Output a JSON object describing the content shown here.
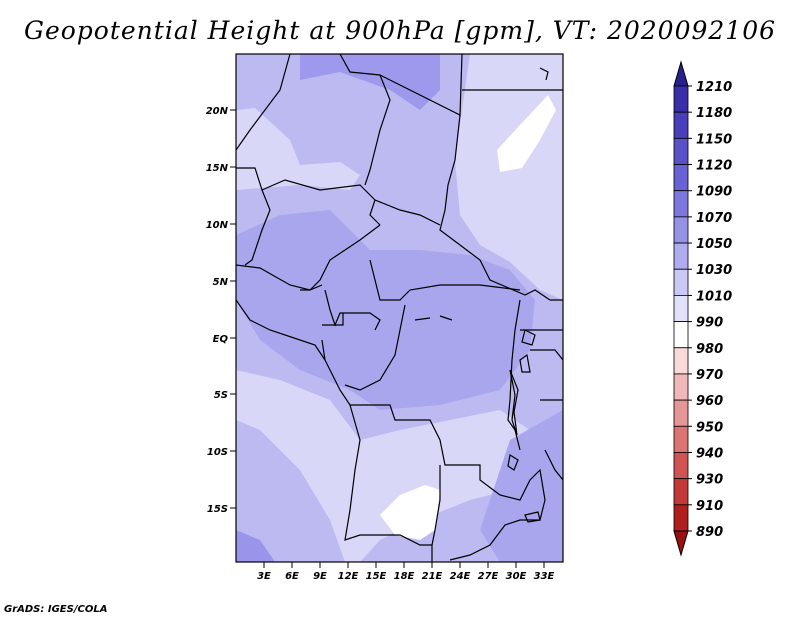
{
  "title": "Geopotential Height at 900hPa [gpm], VT: 2020092106",
  "credit": "GrADS: IGES/COLA",
  "map": {
    "lat_labels": [
      "20N",
      "15N",
      "10N",
      "5N",
      "EQ",
      "5S",
      "10S",
      "15S"
    ],
    "lon_labels": [
      "3E",
      "6E",
      "9E",
      "12E",
      "15E",
      "18E",
      "21E",
      "24E",
      "27E",
      "30E",
      "33E"
    ]
  },
  "colorbar": {
    "levels": [
      "1210",
      "1180",
      "1150",
      "1120",
      "1090",
      "1070",
      "1050",
      "1030",
      "1010",
      "990",
      "980",
      "970",
      "960",
      "950",
      "940",
      "930",
      "910",
      "890"
    ],
    "colors": [
      "#2a1f8f",
      "#3a2fa8",
      "#4a3fba",
      "#5a50c8",
      "#6a62d4",
      "#7e78de",
      "#9692e6",
      "#b0aced",
      "#cac8f4",
      "#e2e1fa",
      "#ffffff",
      "#f8dada",
      "#f0b8b8",
      "#e69696",
      "#dc7474",
      "#d15454",
      "#c43838",
      "#b01e1e",
      "#991010"
    ]
  },
  "shading": {
    "lightest": "#ffffff",
    "light": "#d8d7f8",
    "mid": "#bdbaf2",
    "dark": "#a9a5ee",
    "darkest": "#8f8ae6"
  }
}
